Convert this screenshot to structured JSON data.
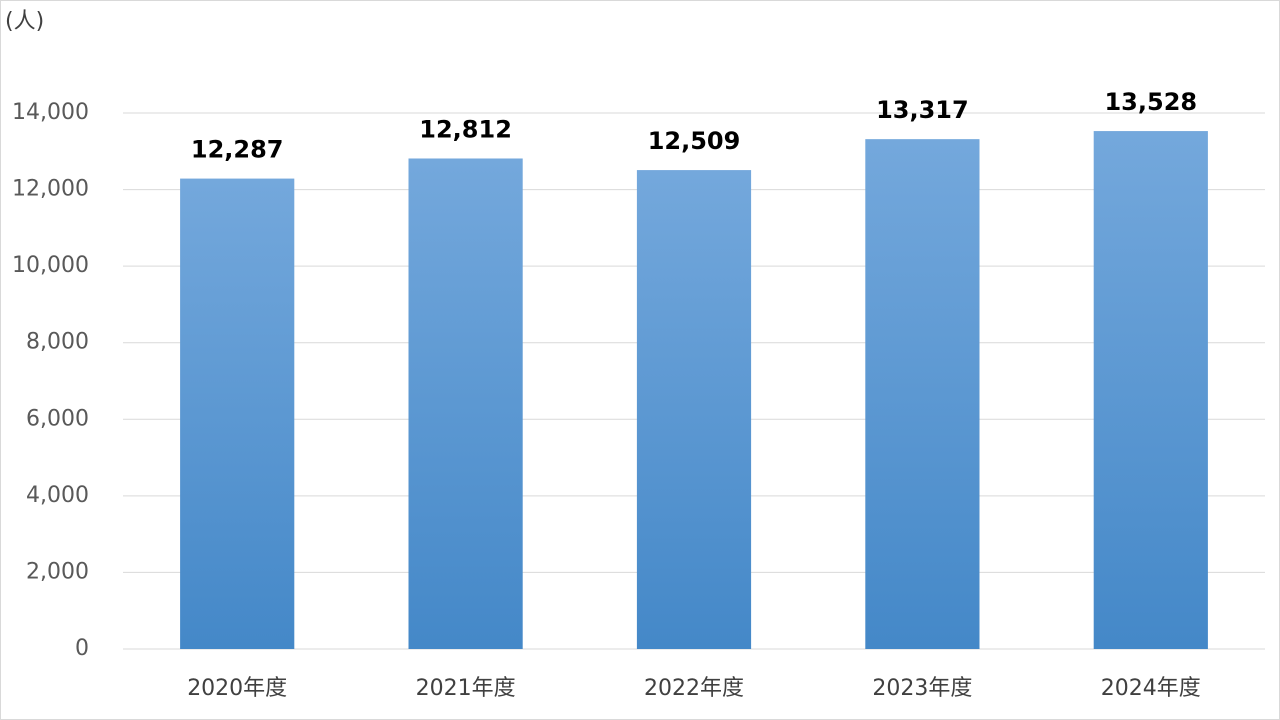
{
  "chart_data": {
    "type": "bar",
    "y_unit_label": "(人)",
    "categories": [
      "2020年度",
      "2021年度",
      "2022年度",
      "2023年度",
      "2024年度"
    ],
    "values": [
      12287,
      12812,
      12509,
      13317,
      13528
    ],
    "value_labels": [
      "12,287",
      "12,812",
      "12,509",
      "13,317",
      "13,528"
    ],
    "gradient": [
      "#74a8dc",
      "#4488c8"
    ],
    "ylim": [
      0,
      14000
    ],
    "yticks": [
      0,
      {
        "value": 2000,
        "label": "2,000"
      },
      {
        "value": 4000,
        "label": "4,000"
      },
      {
        "value": 6000,
        "label": "6,000"
      },
      {
        "value": 8000,
        "label": "8,000"
      },
      {
        "value": 10000,
        "label": "10,000"
      },
      {
        "value": 12000,
        "label": "12,000"
      },
      {
        "value": 14000,
        "label": "14,000"
      }
    ],
    "grid": true
  }
}
